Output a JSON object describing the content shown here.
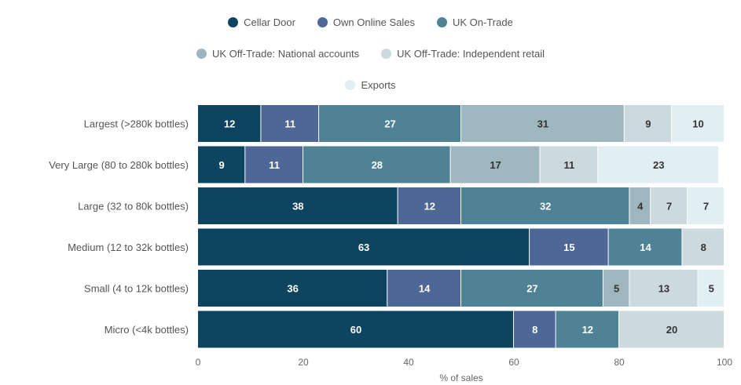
{
  "chart_data": {
    "type": "bar",
    "orientation": "horizontal",
    "stacked": true,
    "xlabel": "% of sales",
    "xlim": [
      0,
      100
    ],
    "xticks": [
      0,
      20,
      40,
      60,
      80,
      100
    ],
    "grid": false,
    "legend_position": "top",
    "categories": [
      "Largest (>280k bottles)",
      "Very Large (80 to 280k bottles)",
      "Large (32 to 80k bottles)",
      "Medium (12 to 32k bottles)",
      "Small (4 to 12k bottles)",
      "Micro (<4k bottles)"
    ],
    "series": [
      {
        "name": "Cellar Door",
        "color": "#0d4560",
        "label_color": "#ffffff",
        "values": [
          12,
          9,
          38,
          63,
          36,
          60
        ]
      },
      {
        "name": "Own Online Sales",
        "color": "#4f6796",
        "label_color": "#ffffff",
        "values": [
          11,
          11,
          12,
          15,
          14,
          8
        ]
      },
      {
        "name": "UK On-Trade",
        "color": "#4e8294",
        "label_color": "#ffffff",
        "values": [
          27,
          28,
          32,
          14,
          27,
          12
        ]
      },
      {
        "name": "UK Off-Trade: National accounts",
        "color": "#9eb6bf",
        "label_color": "#333333",
        "values": [
          31,
          17,
          4,
          0,
          5,
          0
        ]
      },
      {
        "name": "UK Off-Trade: Independent retail",
        "color": "#ccd9de",
        "label_color": "#333333",
        "values": [
          9,
          11,
          7,
          8,
          13,
          20
        ]
      },
      {
        "name": "Exports",
        "color": "#e1eef2",
        "label_color": "#333333",
        "values": [
          10,
          23,
          7,
          0,
          5,
          0
        ]
      }
    ]
  }
}
